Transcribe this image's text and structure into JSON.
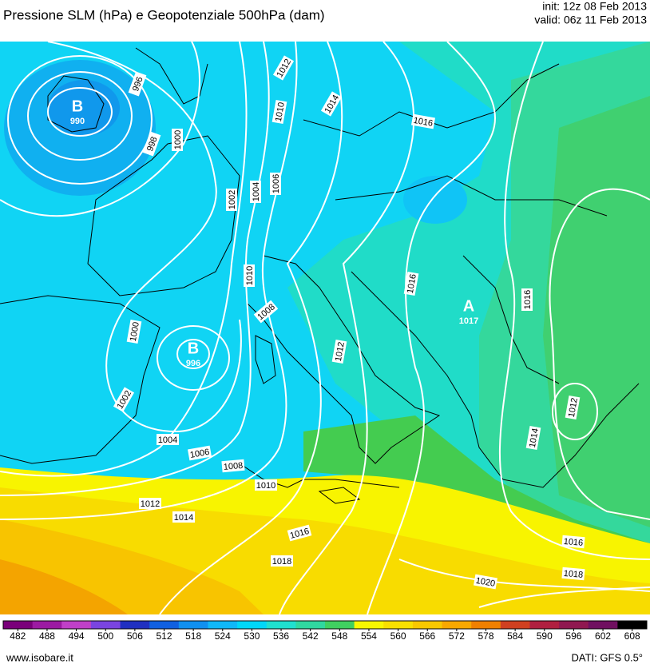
{
  "header": {
    "title": "Pressione SLM (hPa) e Geopotenziale 500hPa (dam)",
    "init": "init: 12z 08 Feb 2013",
    "valid": "valid: 06z 11 Feb 2013"
  },
  "map": {
    "centers": [
      {
        "letter": "B",
        "value": "990"
      },
      {
        "letter": "B",
        "value": "996"
      },
      {
        "letter": "A",
        "value": "1017"
      }
    ],
    "isobar_labels": [
      "996",
      "998",
      "1000",
      "1002",
      "1004",
      "1006",
      "1010",
      "1012",
      "1014",
      "1016",
      "1010",
      "1008",
      "1012",
      "1016",
      "1016",
      "1000",
      "1002",
      "1004",
      "1006",
      "1008",
      "1010",
      "1012",
      "1014",
      "1016",
      "1018",
      "1020",
      "1018",
      "1016",
      "1012",
      "1014"
    ]
  },
  "colorbar": {
    "ticks": [
      482,
      488,
      494,
      500,
      506,
      512,
      518,
      524,
      530,
      536,
      542,
      548,
      554,
      560,
      566,
      572,
      578,
      584,
      590,
      596,
      602,
      608
    ],
    "colors": [
      "#7a007a",
      "#9c1aa2",
      "#c040c8",
      "#7a44e0",
      "#2030c0",
      "#1060e0",
      "#1090f0",
      "#10b8f8",
      "#00d8f8",
      "#20e0d0",
      "#30d8a0",
      "#40d060",
      "#f8f800",
      "#f8e000",
      "#f8c800",
      "#f8a800",
      "#f08000",
      "#d04020",
      "#b02040",
      "#901850",
      "#701060",
      "#000000"
    ]
  },
  "footer": {
    "site": "www.isobare.it",
    "source": "DATI: GFS 0.5°"
  }
}
